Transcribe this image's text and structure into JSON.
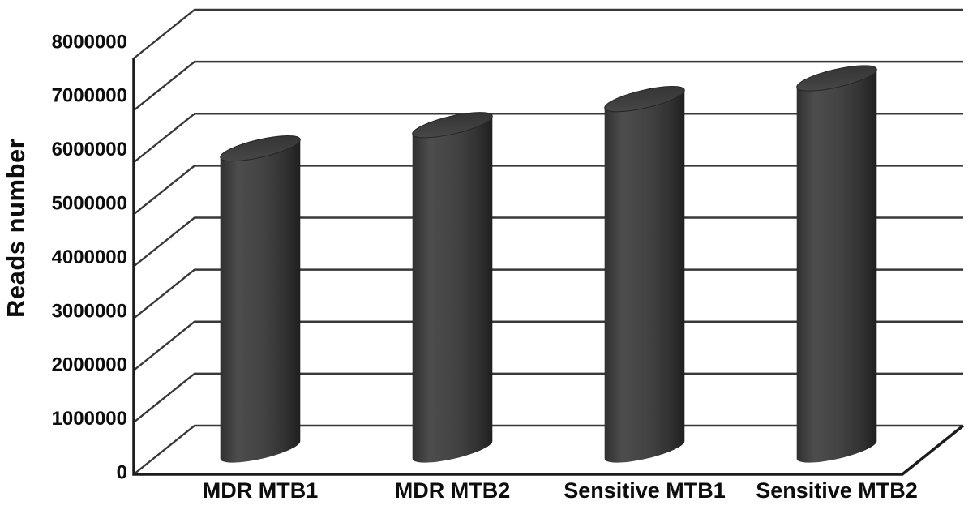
{
  "figure": {
    "background": "#ffffff"
  },
  "chart_data": {
    "type": "bar",
    "style": "3d-cylinder",
    "title": "",
    "xlabel": "",
    "ylabel": "Reads number",
    "categories": [
      "MDR MTB1",
      "MDR MTB2",
      "Sensitive MTB1",
      "Sensitive MTB2"
    ],
    "values": [
      5800000,
      6250000,
      6750000,
      7150000
    ],
    "ylim": [
      0,
      8000000
    ],
    "yticks": [
      0,
      1000000,
      2000000,
      3000000,
      4000000,
      5000000,
      6000000,
      7000000,
      8000000
    ],
    "ytick_labels": [
      "0",
      "1000000",
      "2000000",
      "3000000",
      "4000000",
      "5000000",
      "6000000",
      "7000000",
      "8000000"
    ],
    "grid": true,
    "legend": false,
    "colors": {
      "background": "#ffffff",
      "text": "#0d0d0d",
      "gridline": "#383838",
      "axis": "#1c1c1c",
      "bar_edge_left": "#303030",
      "bar_highlight": "#4d4d4d",
      "bar_mid": "#424242",
      "bar_edge_right": "#1f1f1f",
      "bar_top_light": "#4b4b4b",
      "bar_top_dark": "#323232",
      "bar_top_rim": "#262626"
    }
  }
}
